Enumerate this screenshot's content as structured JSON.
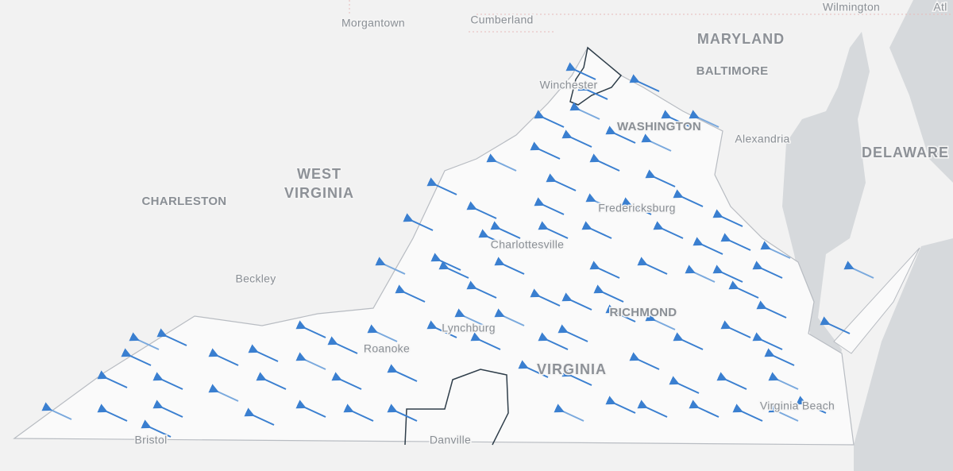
{
  "map": {
    "places": [
      {
        "name": "Morgantown",
        "kind": "city"
      },
      {
        "name": "Cumberland",
        "kind": "city"
      },
      {
        "name": "Wilmington",
        "kind": "city"
      },
      {
        "name": "MARYLAND",
        "kind": "state"
      },
      {
        "name": "BALTIMORE",
        "kind": "major"
      },
      {
        "name": "Winchester",
        "kind": "city"
      },
      {
        "name": "WASHINGTON",
        "kind": "major"
      },
      {
        "name": "Alexandria",
        "kind": "city"
      },
      {
        "name": "DELAWARE",
        "kind": "state"
      },
      {
        "name": "WEST",
        "kind": "state"
      },
      {
        "name": "VIRGINIA",
        "kind": "state"
      },
      {
        "name": "CHARLESTON",
        "kind": "major"
      },
      {
        "name": "Fredericksburg",
        "kind": "city"
      },
      {
        "name": "Charlottesville",
        "kind": "city"
      },
      {
        "name": "Beckley",
        "kind": "city"
      },
      {
        "name": "Roanoke",
        "kind": "city"
      },
      {
        "name": "Lynchburg",
        "kind": "city"
      },
      {
        "name": "RICHMOND",
        "kind": "major"
      },
      {
        "name": "VIRGINIA",
        "kind": "state"
      },
      {
        "name": "Virginia Beach",
        "kind": "city"
      },
      {
        "name": "Danville",
        "kind": "city"
      },
      {
        "name": "Bristol",
        "kind": "city"
      },
      {
        "name": "Atl",
        "kind": "city"
      }
    ]
  }
}
